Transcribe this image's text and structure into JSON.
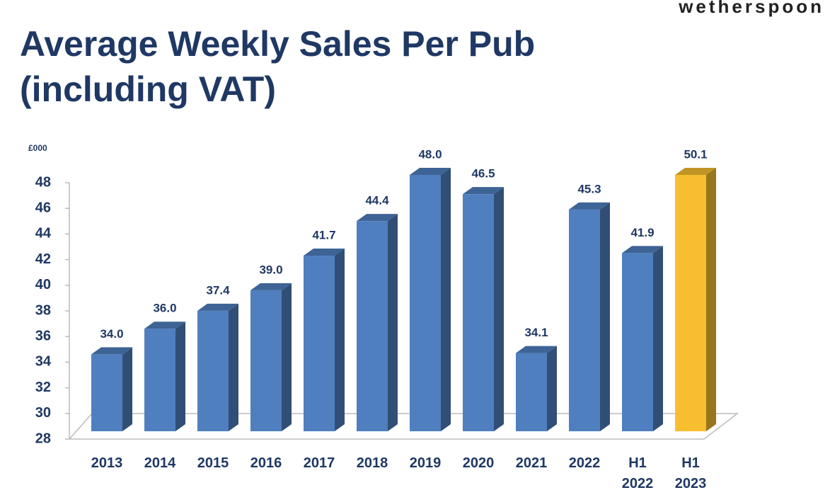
{
  "brand": "wetherspoon",
  "chart_data": {
    "type": "bar3d",
    "title": "Average Weekly Sales Per Pub (including VAT)",
    "unit_label": "£000",
    "categories": [
      "2013",
      "2014",
      "2015",
      "2016",
      "2017",
      "2018",
      "2019",
      "2020",
      "2021",
      "2022",
      "H1 2022",
      "H1 2023"
    ],
    "values": [
      34.0,
      36.0,
      37.4,
      39.0,
      41.7,
      44.4,
      48.0,
      46.5,
      34.1,
      45.3,
      41.9,
      50.1
    ],
    "value_labels": [
      "34.0",
      "36.0",
      "37.4",
      "39.0",
      "41.7",
      "44.4",
      "48.0",
      "46.5",
      "34.1",
      "45.3",
      "41.9",
      "50.1"
    ],
    "colors": [
      "#4f7fbf",
      "#4f7fbf",
      "#4f7fbf",
      "#4f7fbf",
      "#4f7fbf",
      "#4f7fbf",
      "#4f7fbf",
      "#4f7fbf",
      "#4f7fbf",
      "#4f7fbf",
      "#4f7fbf",
      "#f7bf30"
    ],
    "ylim": [
      28,
      48
    ],
    "yticks": [
      28,
      30,
      32,
      34,
      36,
      38,
      40,
      42,
      44,
      46,
      48
    ]
  }
}
